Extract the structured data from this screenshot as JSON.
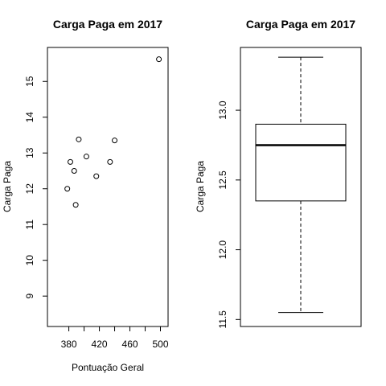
{
  "chart_data": [
    {
      "type": "scatter",
      "title": "Carga Paga em 2017",
      "xlabel": "Pontuação Geral",
      "ylabel": "Carga Paga",
      "xlim": [
        352,
        510
      ],
      "ylim": [
        8.15,
        15.95
      ],
      "xticks": [
        380,
        400,
        420,
        440,
        460,
        480,
        500
      ],
      "xtick_labels": [
        "380",
        "",
        "420",
        "",
        "460",
        "",
        "500"
      ],
      "yticks": [
        9,
        10,
        11,
        12,
        13,
        14,
        15
      ],
      "ytick_labels": [
        "9",
        "10",
        "11",
        "12",
        "13",
        "14",
        "15"
      ],
      "grid": false,
      "points": [
        {
          "x": 378,
          "y": 12.0
        },
        {
          "x": 382,
          "y": 12.75
        },
        {
          "x": 387,
          "y": 12.5
        },
        {
          "x": 389,
          "y": 11.55
        },
        {
          "x": 393,
          "y": 13.38
        },
        {
          "x": 403,
          "y": 12.9
        },
        {
          "x": 416,
          "y": 12.35
        },
        {
          "x": 434,
          "y": 12.75
        },
        {
          "x": 440,
          "y": 13.35
        },
        {
          "x": 498,
          "y": 15.62
        }
      ]
    },
    {
      "type": "box",
      "title": "Carga Paga em 2017",
      "xlabel": "",
      "ylabel": "Carga Paga",
      "ylim": [
        11.45,
        13.45
      ],
      "yticks": [
        11.5,
        12.0,
        12.5,
        13.0
      ],
      "ytick_labels": [
        "11.5",
        "12.0",
        "12.5",
        "13.0"
      ],
      "grid": false,
      "box": {
        "whisker_low": 11.55,
        "q1": 12.35,
        "median": 12.75,
        "q3": 12.9,
        "whisker_high": 13.38
      }
    }
  ]
}
